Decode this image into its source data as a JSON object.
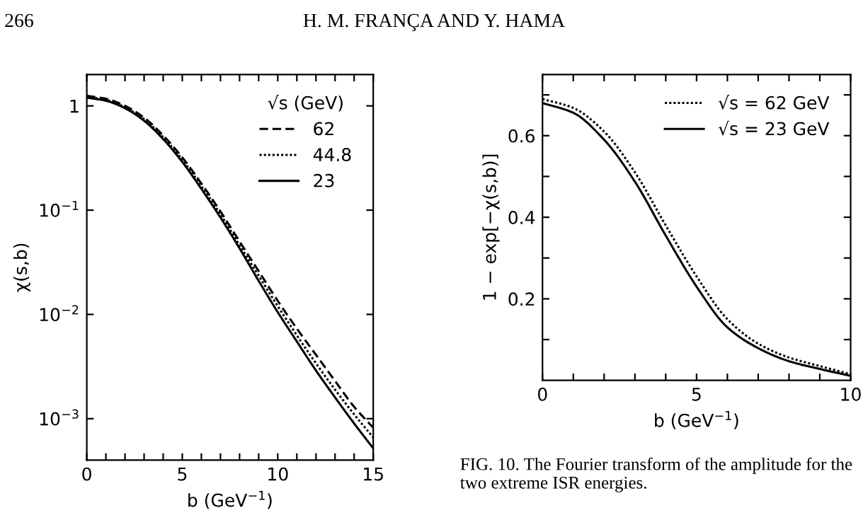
{
  "chart_data": [
    {
      "type": "line",
      "xlabel": "b (GeV$^{−1}$)",
      "ylabel": "χ(s,b)",
      "log": "y",
      "legend": "top right",
      "legend_title": "√s (GeV)",
      "grid": false,
      "x": [
        0,
        1,
        2,
        3,
        4,
        5,
        6,
        7,
        8,
        9,
        10,
        11,
        12,
        13,
        14,
        15
      ],
      "xlim": [
        0,
        15
      ],
      "xticks": [
        0,
        {
          "value": 1,
          "label": null
        },
        {
          "value": 2,
          "label": null
        },
        {
          "value": 3,
          "label": null
        },
        {
          "value": 4,
          "label": null
        },
        5,
        {
          "value": 6,
          "label": null
        },
        {
          "value": 7,
          "label": null
        },
        {
          "value": 8,
          "label": null
        },
        {
          "value": 9,
          "label": null
        },
        10,
        {
          "value": 11,
          "label": null
        },
        {
          "value": 12,
          "label": null
        },
        {
          "value": 13,
          "label": null
        },
        {
          "value": 14,
          "label": null
        },
        15
      ],
      "ylim": [
        0.0004,
        2
      ],
      "yticks": [
        {
          "value": 0.001,
          "label": "10$^{−3}$"
        },
        {
          "value": 0.01,
          "label": "10$^{−2}$"
        },
        {
          "value": 0.1,
          "label": "10$^{−1}$"
        },
        1
      ],
      "series": [
        {
          "name": "62",
          "color": "#000000",
          "line_style": "dashed",
          "values": [
            1.25,
            1.17,
            1.0,
            0.77,
            0.52,
            0.32,
            0.18,
            0.097,
            0.05,
            0.026,
            0.0135,
            0.0073,
            0.0041,
            0.0023,
            0.0013,
            0.00082
          ]
        },
        {
          "name": "44.8",
          "color": "#000000",
          "line_style": "dotted",
          "values": [
            1.22,
            1.14,
            0.97,
            0.745,
            0.5,
            0.305,
            0.17,
            0.091,
            0.046,
            0.0235,
            0.012,
            0.0063,
            0.0034,
            0.0019,
            0.0011,
            0.00066
          ]
        },
        {
          "name": "23",
          "color": "#000000",
          "line_style": "solid",
          "values": [
            1.2,
            1.12,
            0.95,
            0.72,
            0.48,
            0.29,
            0.16,
            0.085,
            0.043,
            0.021,
            0.0105,
            0.0055,
            0.0029,
            0.0016,
            0.0009,
            0.00052
          ]
        }
      ],
      "annotations": [
        "266",
        "H. M. FRANÇA AND Y. HAMA"
      ]
    },
    {
      "type": "line",
      "xlabel": "b (GeV$^{−1}$)",
      "ylabel": "1 − exp[−χ(s,b)]",
      "legend": "top right",
      "grid": false,
      "x": [
        0,
        1,
        2,
        3,
        4,
        5,
        6,
        7,
        8,
        9,
        10
      ],
      "xlim": [
        0,
        10
      ],
      "xticks": [
        0,
        {
          "value": 1,
          "label": null
        },
        {
          "value": 2,
          "label": null
        },
        {
          "value": 3,
          "label": null
        },
        {
          "value": 4,
          "label": null
        },
        5,
        {
          "value": 6,
          "label": null
        },
        {
          "value": 7,
          "label": null
        },
        {
          "value": 8,
          "label": null
        },
        {
          "value": 9,
          "label": null
        },
        10
      ],
      "ylim": [
        0,
        0.75
      ],
      "yticks": [
        {
          "value": 0.1,
          "label": null
        },
        {
          "value": 0.2,
          "label": "0.2"
        },
        {
          "value": 0.3,
          "label": null
        },
        {
          "value": 0.4,
          "label": "0.4"
        },
        {
          "value": 0.5,
          "label": null
        },
        {
          "value": 0.6,
          "label": "0.6"
        },
        {
          "value": 0.7,
          "label": null
        }
      ],
      "series": [
        {
          "name": "√s = 62 GeV",
          "color": "#000000",
          "line_style": "dotted",
          "values": [
            0.69,
            0.668,
            0.61,
            0.51,
            0.38,
            0.255,
            0.15,
            0.09,
            0.056,
            0.035,
            0.015
          ]
        },
        {
          "name": "√s = 23 GeV",
          "color": "#000000",
          "line_style": "solid",
          "values": [
            0.68,
            0.656,
            0.59,
            0.487,
            0.355,
            0.23,
            0.13,
            0.079,
            0.047,
            0.028,
            0.011
          ]
        }
      ],
      "annotations": [
        "FIG. 10. The Fourier transform of the amplitude for the two extreme ISR energies."
      ]
    }
  ]
}
